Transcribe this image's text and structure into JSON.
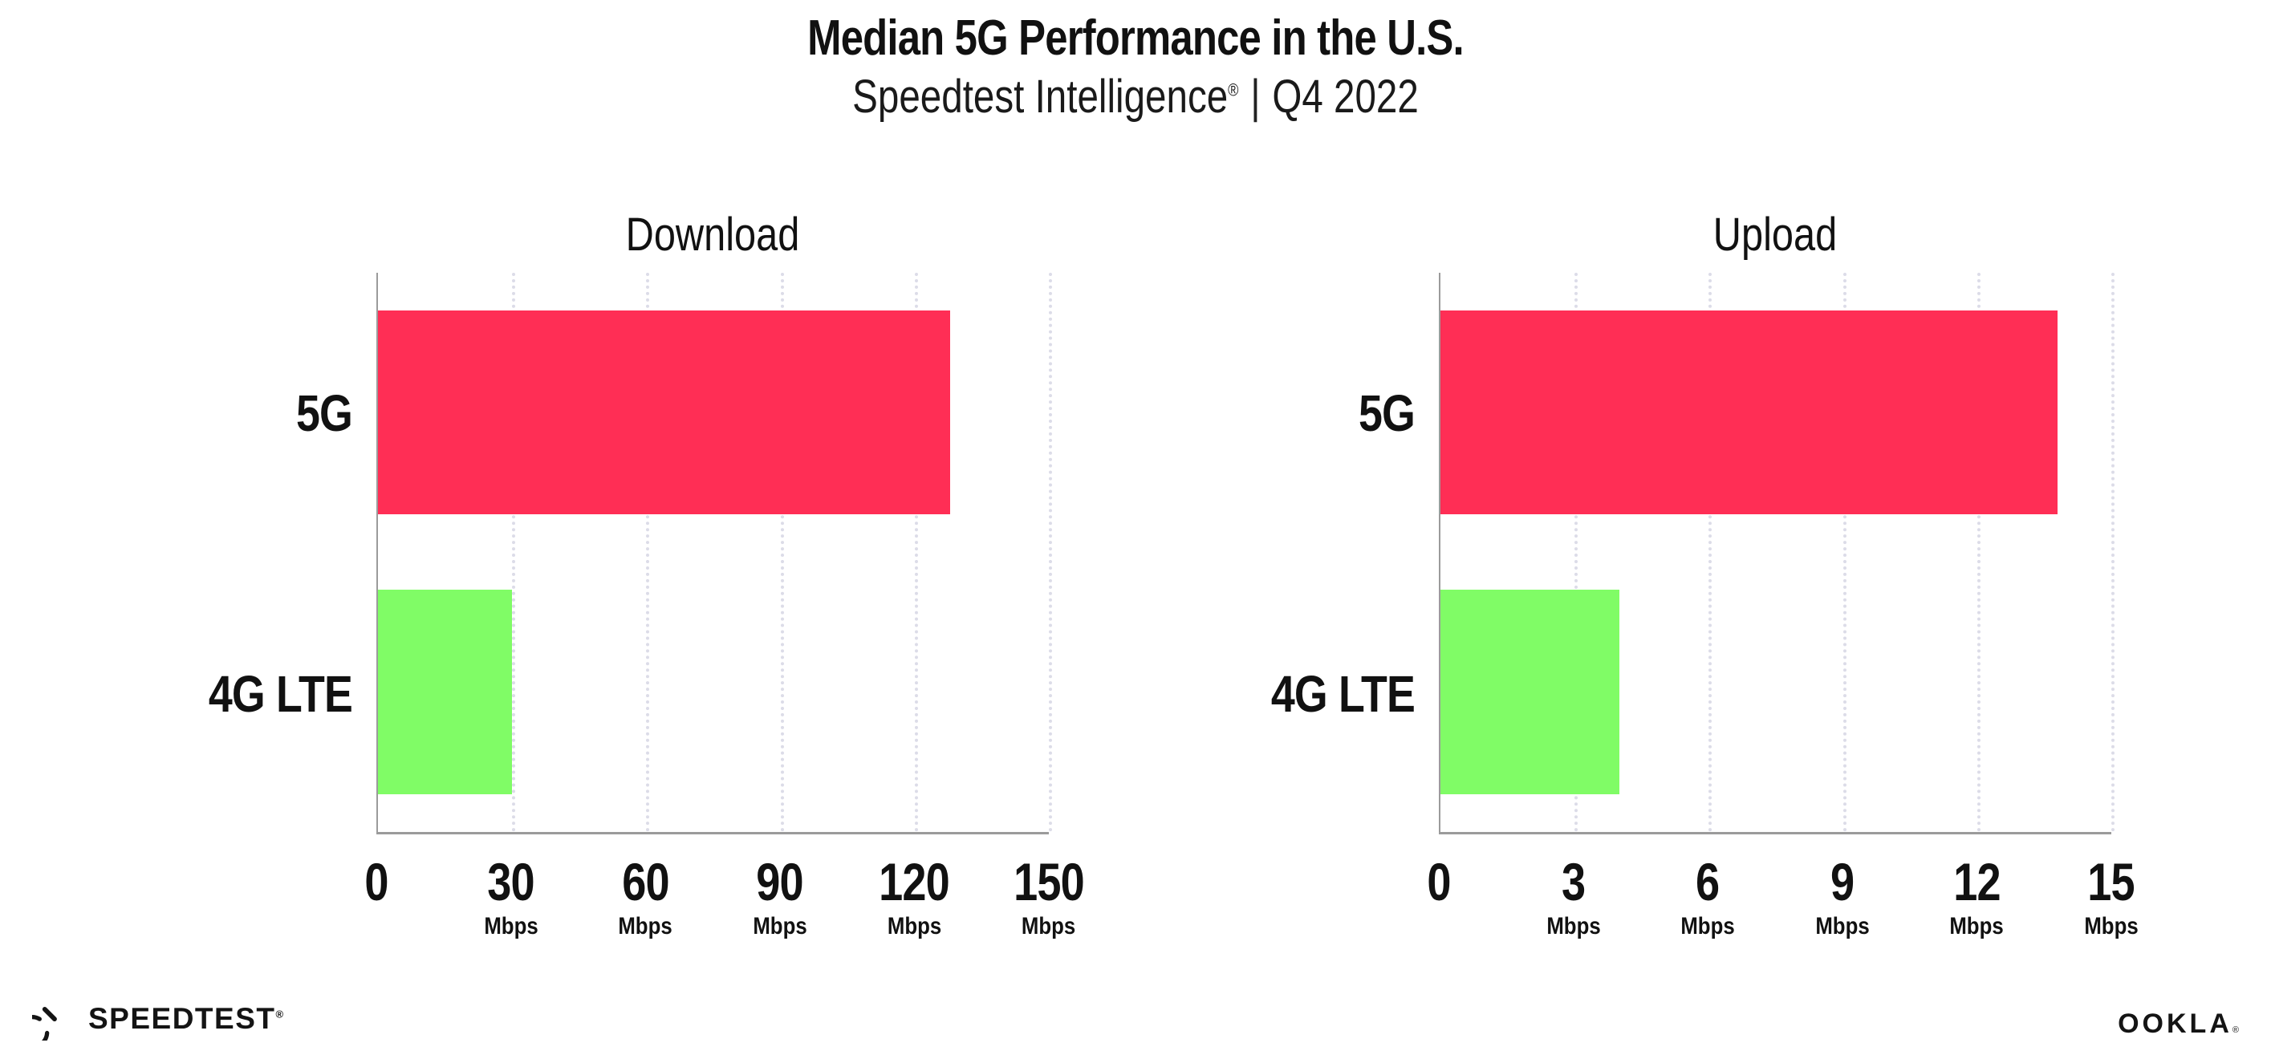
{
  "header": {
    "title": "Median 5G Performance in the U.S.",
    "subtitle_brand": "Speedtest Intelligence",
    "subtitle_reg": "®",
    "subtitle_sep": "|",
    "subtitle_period": "Q4 2022"
  },
  "colors": {
    "bar_5g": "#FF2E55",
    "bar_4g": "#80FC66",
    "axis": "#9B9B9B",
    "grid": "#DCDCE8",
    "ink": "#111111"
  },
  "chart_data": [
    {
      "type": "bar",
      "orientation": "horizontal",
      "title": "Download",
      "categories": [
        "5G",
        "4G LTE"
      ],
      "values": [
        128,
        30
      ],
      "value_unit": "Mbps",
      "xlim": [
        0,
        150
      ],
      "xticks": [
        0,
        30,
        60,
        90,
        120,
        150
      ],
      "tick_unit": "Mbps",
      "grid": "dotted-vertical",
      "legend": "none",
      "bar_colors": [
        "#FF2E55",
        "#80FC66"
      ]
    },
    {
      "type": "bar",
      "orientation": "horizontal",
      "title": "Upload",
      "categories": [
        "5G",
        "4G LTE"
      ],
      "values": [
        13.8,
        4
      ],
      "value_unit": "Mbps",
      "xlim": [
        0,
        15
      ],
      "xticks": [
        0,
        3,
        6,
        9,
        12,
        15
      ],
      "tick_unit": "Mbps",
      "grid": "dotted-vertical",
      "legend": "none",
      "bar_colors": [
        "#FF2E55",
        "#80FC66"
      ]
    }
  ],
  "footer": {
    "speedtest_label": "SPEEDTEST",
    "speedtest_reg": "®",
    "ookla_label": "OOKLA",
    "ookla_reg": "®"
  }
}
